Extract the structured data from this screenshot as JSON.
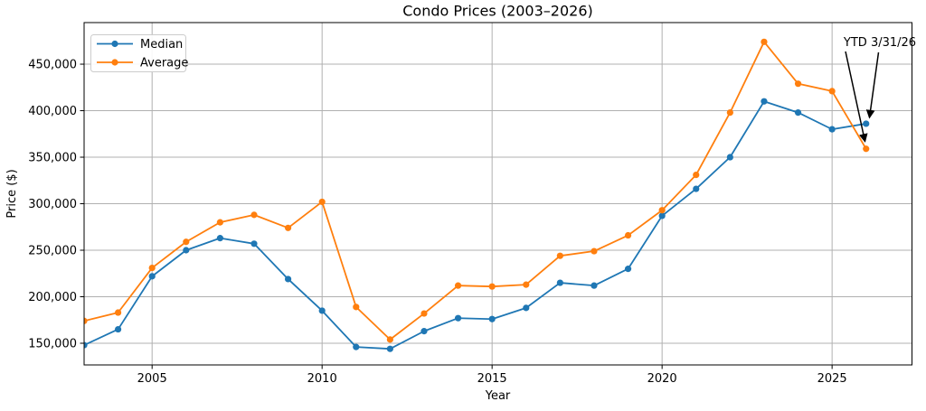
{
  "chart_data": {
    "type": "line",
    "title": "Condo Prices (2003–2026)",
    "xlabel": "Year",
    "ylabel": "Price ($)",
    "x": [
      2003,
      2004,
      2005,
      2006,
      2007,
      2008,
      2009,
      2010,
      2011,
      2012,
      2013,
      2014,
      2015,
      2016,
      2017,
      2018,
      2019,
      2020,
      2021,
      2022,
      2023,
      2024,
      2025,
      2026
    ],
    "series": [
      {
        "name": "Median",
        "color": "#1f77b4",
        "values": [
          148000,
          165000,
          222000,
          250000,
          263000,
          257000,
          219000,
          185000,
          146000,
          144000,
          163000,
          177000,
          176000,
          188000,
          215000,
          212000,
          230000,
          287000,
          316000,
          350000,
          410000,
          398000,
          380000,
          386000
        ]
      },
      {
        "name": "Average",
        "color": "#ff7f0e",
        "values": [
          174000,
          183000,
          231000,
          259000,
          280000,
          288000,
          274000,
          302000,
          189000,
          154000,
          182000,
          212000,
          211000,
          213000,
          244000,
          249000,
          266000,
          293000,
          331000,
          398000,
          474000,
          429000,
          421000,
          359000
        ]
      }
    ],
    "xticks": [
      2005,
      2010,
      2015,
      2020,
      2025
    ],
    "yticks": [
      150000,
      200000,
      250000,
      300000,
      350000,
      400000,
      450000
    ],
    "xlim": [
      2003,
      2027.35
    ],
    "ylim": [
      126700,
      494700
    ],
    "grid": true,
    "grid_color": "#b0b0b0",
    "axis_color": "#000000",
    "background": "#ffffff",
    "legend_position": "upper-left",
    "legend": [
      "Median",
      "Average"
    ],
    "annotation": {
      "text": "YTD 3/31/26",
      "targets": [
        {
          "series": "Median",
          "year": 2026
        },
        {
          "series": "Average",
          "year": 2026
        }
      ]
    }
  }
}
